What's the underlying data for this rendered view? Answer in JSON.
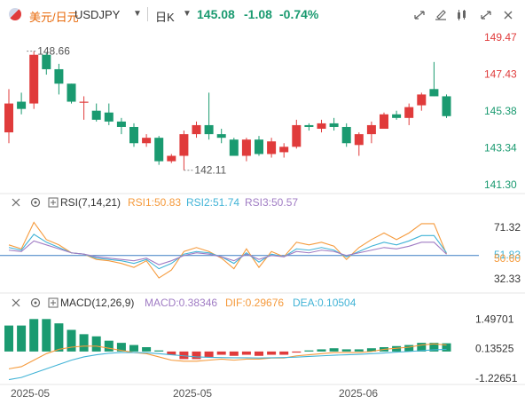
{
  "header": {
    "symbol_name": "美元/日元",
    "symbol_code": "USDJPY",
    "period": "日K",
    "price": "145.08",
    "change": "-1.08",
    "change_pct": "-0.74%",
    "up_color": "#e03b3b",
    "down_color": "#1a9a70",
    "tool_icons": [
      "scale-icon",
      "compare-icon",
      "indicator-icon",
      "fullscreen-icon",
      "close-icon"
    ]
  },
  "chart_data": [
    {
      "type": "candlestick",
      "title": "",
      "x_labels": [
        "2025-05",
        "2025-05",
        "2025-06"
      ],
      "y_ticks": [
        "149.47",
        "147.43",
        "145.38",
        "143.34",
        "141.30"
      ],
      "ylim": [
        141.3,
        149.47
      ],
      "annotations": [
        {
          "text": "148.66",
          "label": "high"
        },
        {
          "text": "142.11",
          "label": "low"
        }
      ],
      "candles": [
        {
          "o": 144.2,
          "h": 146.6,
          "l": 143.6,
          "c": 145.8
        },
        {
          "o": 145.9,
          "h": 146.4,
          "l": 145.2,
          "c": 145.5
        },
        {
          "o": 145.8,
          "h": 148.7,
          "l": 145.5,
          "c": 148.5
        },
        {
          "o": 148.5,
          "h": 148.6,
          "l": 147.4,
          "c": 147.7
        },
        {
          "o": 147.7,
          "h": 148.0,
          "l": 146.3,
          "c": 146.9
        },
        {
          "o": 146.9,
          "h": 146.9,
          "l": 145.8,
          "c": 145.9
        },
        {
          "o": 145.9,
          "h": 146.2,
          "l": 144.9,
          "c": 145.9
        },
        {
          "o": 145.4,
          "h": 145.8,
          "l": 144.8,
          "c": 144.9
        },
        {
          "o": 145.3,
          "h": 145.8,
          "l": 144.6,
          "c": 144.8
        },
        {
          "o": 144.8,
          "h": 145.0,
          "l": 144.1,
          "c": 144.5
        },
        {
          "o": 144.5,
          "h": 144.7,
          "l": 143.4,
          "c": 143.6
        },
        {
          "o": 143.6,
          "h": 144.1,
          "l": 143.4,
          "c": 143.9
        },
        {
          "o": 143.9,
          "h": 144.0,
          "l": 142.4,
          "c": 142.6
        },
        {
          "o": 142.6,
          "h": 143.0,
          "l": 142.5,
          "c": 142.9
        },
        {
          "o": 142.9,
          "h": 144.3,
          "l": 142.1,
          "c": 144.1
        },
        {
          "o": 144.1,
          "h": 144.8,
          "l": 143.9,
          "c": 144.6
        },
        {
          "o": 144.6,
          "h": 146.4,
          "l": 143.8,
          "c": 144.1
        },
        {
          "o": 144.1,
          "h": 144.4,
          "l": 143.6,
          "c": 143.9
        },
        {
          "o": 143.8,
          "h": 143.9,
          "l": 142.9,
          "c": 142.9
        },
        {
          "o": 142.9,
          "h": 143.9,
          "l": 142.6,
          "c": 143.8
        },
        {
          "o": 143.8,
          "h": 144.0,
          "l": 142.9,
          "c": 143.0
        },
        {
          "o": 143.0,
          "h": 143.9,
          "l": 142.8,
          "c": 143.7
        },
        {
          "o": 143.1,
          "h": 143.6,
          "l": 142.8,
          "c": 143.4
        },
        {
          "o": 143.4,
          "h": 144.9,
          "l": 143.3,
          "c": 144.6
        },
        {
          "o": 144.6,
          "h": 144.7,
          "l": 144.3,
          "c": 144.5
        },
        {
          "o": 144.4,
          "h": 144.9,
          "l": 144.2,
          "c": 144.7
        },
        {
          "o": 144.7,
          "h": 145.0,
          "l": 144.3,
          "c": 144.5
        },
        {
          "o": 144.5,
          "h": 144.7,
          "l": 143.4,
          "c": 143.6
        },
        {
          "o": 143.5,
          "h": 144.2,
          "l": 142.9,
          "c": 144.1
        },
        {
          "o": 144.1,
          "h": 144.8,
          "l": 143.6,
          "c": 144.6
        },
        {
          "o": 144.4,
          "h": 145.3,
          "l": 144.4,
          "c": 145.2
        },
        {
          "o": 145.2,
          "h": 145.4,
          "l": 144.9,
          "c": 145.0
        },
        {
          "o": 145.0,
          "h": 145.8,
          "l": 144.6,
          "c": 145.6
        },
        {
          "o": 145.7,
          "h": 146.4,
          "l": 145.4,
          "c": 146.3
        },
        {
          "o": 146.6,
          "h": 148.1,
          "l": 146.2,
          "c": 146.2
        },
        {
          "o": 146.2,
          "h": 146.3,
          "l": 145.0,
          "c": 145.1
        }
      ]
    },
    {
      "type": "line",
      "title": "RSI(7,14,21)",
      "legend": [
        {
          "name": "RSI1",
          "value": "50.83",
          "color": "#f59a3c"
        },
        {
          "name": "RSI2",
          "value": "51.74",
          "color": "#41b3d6"
        },
        {
          "name": "RSI3",
          "value": "50.57",
          "color": "#a07cc4"
        }
      ],
      "y_ticks": [
        "71.32",
        "51.83",
        "50.60",
        "32.33"
      ],
      "ylim": [
        25,
        82
      ],
      "reference_line": 50,
      "series": [
        {
          "name": "RSI1",
          "values": [
            58,
            55,
            75,
            62,
            58,
            52,
            51,
            47,
            46,
            44,
            41,
            46,
            33,
            39,
            53,
            56,
            53,
            48,
            40,
            55,
            41,
            53,
            49,
            60,
            58,
            60,
            57,
            47,
            56,
            62,
            67,
            62,
            67,
            74,
            74,
            51
          ]
        },
        {
          "name": "RSI2",
          "values": [
            56,
            54,
            66,
            60,
            56,
            52,
            51,
            48,
            47,
            46,
            44,
            47,
            40,
            44,
            51,
            53,
            52,
            49,
            44,
            52,
            45,
            51,
            49,
            55,
            54,
            56,
            54,
            49,
            53,
            57,
            60,
            58,
            61,
            65,
            65,
            52
          ]
        },
        {
          "name": "RSI3",
          "values": [
            54,
            53,
            61,
            58,
            55,
            52,
            51,
            49,
            48,
            47,
            46,
            48,
            43,
            46,
            50,
            52,
            51,
            49,
            46,
            51,
            47,
            50,
            49,
            53,
            52,
            54,
            53,
            50,
            52,
            54,
            56,
            55,
            57,
            60,
            60,
            51
          ]
        }
      ]
    },
    {
      "type": "bar",
      "title": "MACD(12,26,9)",
      "legend": [
        {
          "name": "MACD",
          "value": "0.38346",
          "color": "#a07cc4"
        },
        {
          "name": "DIF",
          "value": "0.29676",
          "color": "#f59a3c"
        },
        {
          "name": "DEA",
          "value": "0.10504",
          "color": "#41b3d6"
        }
      ],
      "y_ticks": [
        "1.49701",
        "0.13525",
        "-1.22651"
      ],
      "ylim": [
        -1.4,
        1.8
      ],
      "macd": [
        1.2,
        1.2,
        1.5,
        1.5,
        1.3,
        1.0,
        0.8,
        0.7,
        0.5,
        0.4,
        0.3,
        0.2,
        0.05,
        -0.15,
        -0.35,
        -0.35,
        -0.25,
        -0.15,
        -0.2,
        -0.15,
        -0.2,
        -0.15,
        -0.15,
        -0.05,
        0.05,
        0.1,
        0.15,
        0.1,
        0.1,
        0.15,
        0.2,
        0.25,
        0.3,
        0.4,
        0.4,
        0.38
      ],
      "dif": [
        -0.8,
        -0.7,
        -0.4,
        -0.1,
        0.1,
        0.2,
        0.25,
        0.25,
        0.15,
        0.05,
        -0.05,
        -0.1,
        -0.25,
        -0.4,
        -0.45,
        -0.45,
        -0.4,
        -0.35,
        -0.4,
        -0.35,
        -0.35,
        -0.3,
        -0.3,
        -0.2,
        -0.15,
        -0.1,
        -0.05,
        -0.05,
        -0.05,
        0.0,
        0.1,
        0.15,
        0.2,
        0.3,
        0.35,
        0.3
      ],
      "dea": [
        -1.3,
        -1.2,
        -1.0,
        -0.8,
        -0.6,
        -0.4,
        -0.25,
        -0.15,
        -0.08,
        -0.05,
        -0.05,
        -0.06,
        -0.1,
        -0.15,
        -0.2,
        -0.25,
        -0.27,
        -0.28,
        -0.29,
        -0.29,
        -0.3,
        -0.29,
        -0.28,
        -0.26,
        -0.23,
        -0.2,
        -0.17,
        -0.15,
        -0.13,
        -0.1,
        -0.07,
        -0.03,
        0.0,
        0.04,
        0.08,
        0.1
      ]
    }
  ]
}
